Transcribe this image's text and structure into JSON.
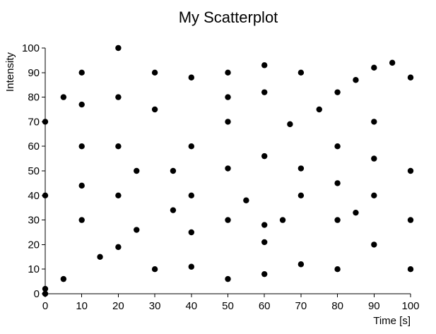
{
  "chart_data": {
    "type": "scatter",
    "title": "My Scatterplot",
    "xlabel": "Time [s]",
    "ylabel": "Intensity",
    "xlim": [
      0,
      100
    ],
    "ylim": [
      0,
      100
    ],
    "xticks": [
      0,
      10,
      20,
      30,
      40,
      50,
      60,
      70,
      80,
      90,
      100
    ],
    "yticks": [
      0,
      10,
      20,
      30,
      40,
      50,
      60,
      70,
      80,
      90,
      100
    ],
    "grid": false,
    "marker_color": "#000000",
    "points": [
      {
        "x": 0,
        "y": 0
      },
      {
        "x": 0,
        "y": 2
      },
      {
        "x": 0,
        "y": 40
      },
      {
        "x": 0,
        "y": 70
      },
      {
        "x": 5,
        "y": 6
      },
      {
        "x": 5,
        "y": 80
      },
      {
        "x": 10,
        "y": 30
      },
      {
        "x": 10,
        "y": 44
      },
      {
        "x": 10,
        "y": 60
      },
      {
        "x": 10,
        "y": 77
      },
      {
        "x": 10,
        "y": 90
      },
      {
        "x": 15,
        "y": 15
      },
      {
        "x": 20,
        "y": 19
      },
      {
        "x": 20,
        "y": 40
      },
      {
        "x": 20,
        "y": 60
      },
      {
        "x": 20,
        "y": 80
      },
      {
        "x": 20,
        "y": 100
      },
      {
        "x": 25,
        "y": 26
      },
      {
        "x": 25,
        "y": 50
      },
      {
        "x": 30,
        "y": 10
      },
      {
        "x": 30,
        "y": 75
      },
      {
        "x": 30,
        "y": 90
      },
      {
        "x": 35,
        "y": 34
      },
      {
        "x": 35,
        "y": 50
      },
      {
        "x": 40,
        "y": 11
      },
      {
        "x": 40,
        "y": 25
      },
      {
        "x": 40,
        "y": 40
      },
      {
        "x": 40,
        "y": 60
      },
      {
        "x": 40,
        "y": 88
      },
      {
        "x": 50,
        "y": 6
      },
      {
        "x": 50,
        "y": 30
      },
      {
        "x": 50,
        "y": 51
      },
      {
        "x": 50,
        "y": 70
      },
      {
        "x": 50,
        "y": 80
      },
      {
        "x": 50,
        "y": 90
      },
      {
        "x": 55,
        "y": 38
      },
      {
        "x": 60,
        "y": 8
      },
      {
        "x": 60,
        "y": 21
      },
      {
        "x": 60,
        "y": 28
      },
      {
        "x": 60,
        "y": 56
      },
      {
        "x": 60,
        "y": 82
      },
      {
        "x": 60,
        "y": 93
      },
      {
        "x": 65,
        "y": 30
      },
      {
        "x": 67,
        "y": 69
      },
      {
        "x": 70,
        "y": 12
      },
      {
        "x": 70,
        "y": 40
      },
      {
        "x": 70,
        "y": 51
      },
      {
        "x": 70,
        "y": 90
      },
      {
        "x": 75,
        "y": 75
      },
      {
        "x": 80,
        "y": 10
      },
      {
        "x": 80,
        "y": 30
      },
      {
        "x": 80,
        "y": 45
      },
      {
        "x": 80,
        "y": 60
      },
      {
        "x": 80,
        "y": 82
      },
      {
        "x": 85,
        "y": 33
      },
      {
        "x": 85,
        "y": 87
      },
      {
        "x": 90,
        "y": 20
      },
      {
        "x": 90,
        "y": 40
      },
      {
        "x": 90,
        "y": 55
      },
      {
        "x": 90,
        "y": 70
      },
      {
        "x": 90,
        "y": 92
      },
      {
        "x": 95,
        "y": 94
      },
      {
        "x": 100,
        "y": 10
      },
      {
        "x": 100,
        "y": 30
      },
      {
        "x": 100,
        "y": 50
      },
      {
        "x": 100,
        "y": 88
      }
    ]
  }
}
